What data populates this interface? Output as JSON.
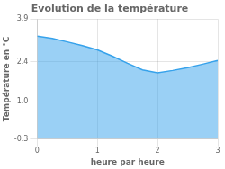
{
  "chart_data": {
    "type": "area",
    "title": "Evolution de la température",
    "xlabel": "heure par heure",
    "ylabel": "Température en °C",
    "x": [
      0,
      0.25,
      0.5,
      0.75,
      1.0,
      1.25,
      1.5,
      1.75,
      2.0,
      2.25,
      2.5,
      2.75,
      3.0
    ],
    "values": [
      3.3,
      3.22,
      3.1,
      2.97,
      2.82,
      2.6,
      2.35,
      2.12,
      2.02,
      2.1,
      2.2,
      2.32,
      2.45
    ],
    "xlim": [
      0,
      3
    ],
    "ylim": [
      -0.3,
      3.9
    ],
    "xticks": [
      0,
      1,
      2,
      3
    ],
    "yticks": [
      -0.3,
      {
        "value": 1.0,
        "label": "1.0"
      },
      2.4,
      3.9
    ],
    "grid": true
  }
}
